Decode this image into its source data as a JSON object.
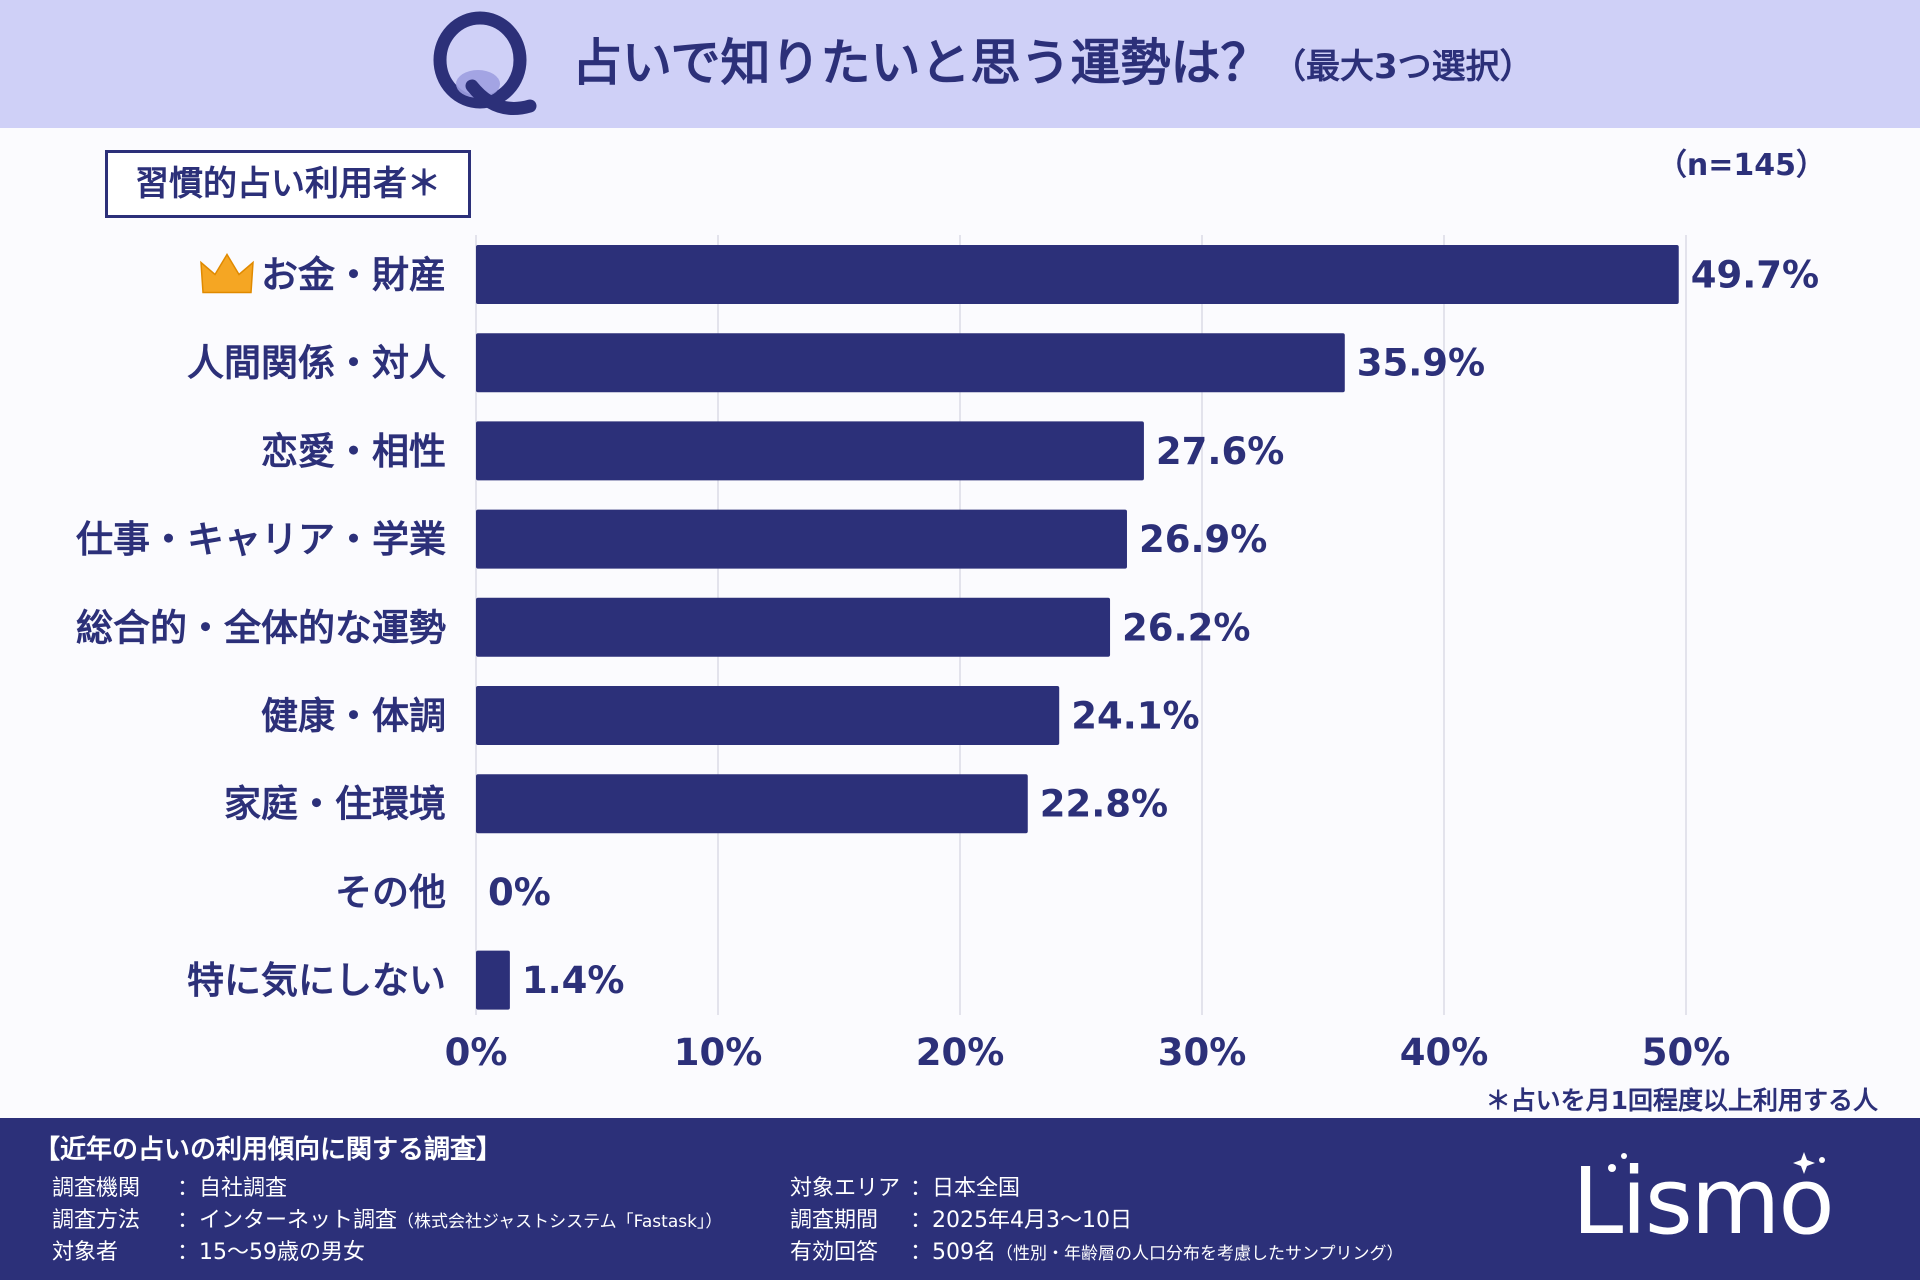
{
  "header": {
    "title": "占いで知りたいと思う運勢は？",
    "subtitle": "（最大3つ選択）"
  },
  "group_label": "習慣的占い利用者＊",
  "sample_size": "（n=145）",
  "footnote": "＊占いを月1回程度以上利用する人",
  "chart_data": {
    "type": "bar",
    "orientation": "horizontal",
    "categories": [
      "お金・財産",
      "人間関係・対人",
      "恋愛・相性",
      "仕事・キャリア・学業",
      "総合的・全体的な運勢",
      "健康・体調",
      "家庭・住環境",
      "その他",
      "特に気にしない"
    ],
    "values": [
      49.7,
      35.9,
      27.6,
      26.9,
      26.2,
      24.1,
      22.8,
      0,
      1.4
    ],
    "value_labels": [
      "49.7%",
      "35.9%",
      "27.6%",
      "26.9%",
      "26.2%",
      "24.1%",
      "22.8%",
      "0%",
      "1.4%"
    ],
    "xlim": [
      0,
      50
    ],
    "xticks": [
      0,
      10,
      20,
      30,
      40,
      50
    ],
    "xtick_labels": [
      "0%",
      "10%",
      "20%",
      "30%",
      "40%",
      "50%"
    ],
    "grid": "vertical",
    "highlight": "お金・財産",
    "highlight_icon": "crown-icon",
    "bar_color": "#2c3079",
    "grid_color": "#e3e3ec"
  },
  "footer": {
    "survey_title": "【近年の占いの利用傾向に関する調査】",
    "left": [
      {
        "label": "調査機関",
        "value": "：自社調査",
        "note": ""
      },
      {
        "label": "調査方法",
        "value": "：インターネット調査",
        "note": "（株式会社ジャストシステム「Fastask」）"
      },
      {
        "label": "対象者",
        "value": "：15〜59歳の男女",
        "note": ""
      }
    ],
    "right": [
      {
        "label": "対象エリア",
        "value": "：日本全国",
        "note": ""
      },
      {
        "label": "調査期間",
        "value": "：2025年4月3〜10日",
        "note": ""
      },
      {
        "label": "有効回答",
        "value": "：509名",
        "note": "（性別・年齢層の人口分布を考慮したサンプリング）"
      }
    ],
    "logo": "Lismo"
  },
  "colors": {
    "header_bg": "#cfd0f7",
    "navy": "#2c3079",
    "crown": "#f5a623"
  }
}
